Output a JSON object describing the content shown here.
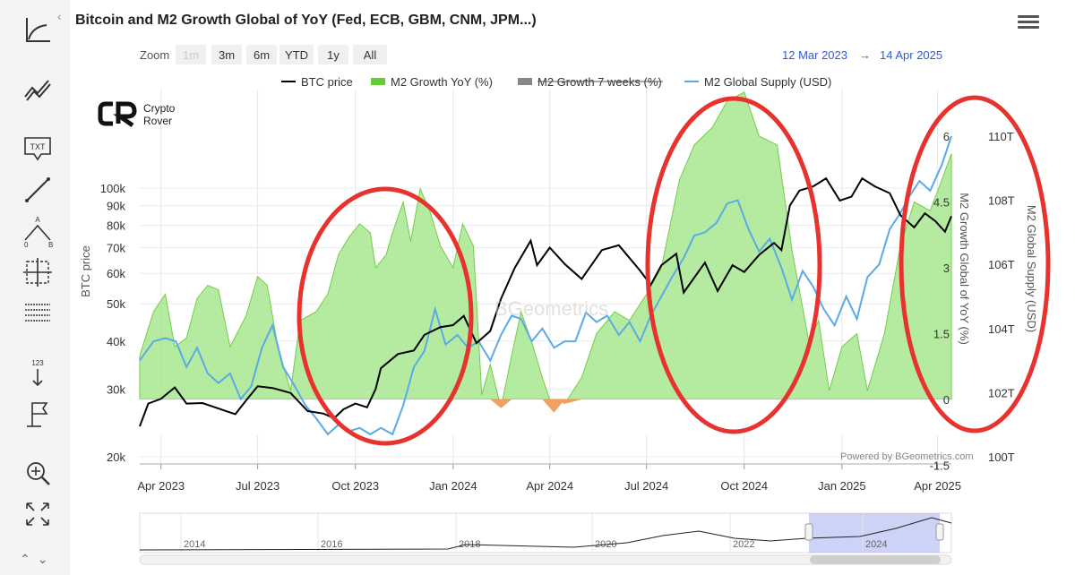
{
  "title": "Bitcoin and M2 Growth Global of YoY (Fed, ECB, GBM, CNM, JPM...)",
  "zoom": {
    "label": "Zoom",
    "buttons": [
      "1m",
      "3m",
      "6m",
      "YTD",
      "1y",
      "All"
    ],
    "disabled": [
      "1m"
    ]
  },
  "date_range": {
    "from": "12 Mar 2023",
    "arrow": "→",
    "to": "14 Apr 2025"
  },
  "watermark": {
    "brand_line1": "Crypto",
    "brand_line2": "Rover",
    "center": "BGeometrics",
    "credit": "Powered by BGeometrics.com"
  },
  "tools": [
    "trend-icon",
    "multi-line-icon",
    "text-annotation-icon",
    "line-draw-icon",
    "angle-icon",
    "crosshair-icon",
    "grid-lines-icon",
    "vertical-counter-icon",
    "flag-icon",
    "zoom-reset-icon",
    "fullscreen-icon"
  ],
  "tool_labels": {
    "text": "TXT",
    "counter": "123",
    "angle_a": "A",
    "angle_0": "0",
    "angle_b": "B"
  },
  "nav": {
    "up": "^",
    "down": "v"
  },
  "colors": {
    "btc": "#000000",
    "m2_yoy_fill": "#a8e890",
    "m2_yoy_neg": "#f0a060",
    "m2_7w": "#888888",
    "m2_supply": "#5aaae6",
    "circles": "#e8322e",
    "date_range": "#2e5be6"
  },
  "chart_data": {
    "type": "line",
    "x_range": [
      "2023-03-12",
      "2025-04-14"
    ],
    "x_ticks": [
      {
        "date": "2023-04-01",
        "label": "Apr 2023"
      },
      {
        "date": "2023-07-01",
        "label": "Jul 2023"
      },
      {
        "date": "2023-10-01",
        "label": "Oct 2023"
      },
      {
        "date": "2024-01-01",
        "label": "Jan 2024"
      },
      {
        "date": "2024-04-01",
        "label": "Apr 2024"
      },
      {
        "date": "2024-07-01",
        "label": "Jul 2024"
      },
      {
        "date": "2024-10-01",
        "label": "Oct 2024"
      },
      {
        "date": "2025-01-01",
        "label": "Jan 2025"
      },
      {
        "date": "2025-04-01",
        "label": "Apr 2025"
      }
    ],
    "axes": {
      "btc": {
        "label": "BTC price",
        "scale": "log",
        "range": [
          20000,
          100000
        ],
        "ticks": [
          {
            "v": 20000,
            "label": "20k"
          },
          {
            "v": 30000,
            "label": "30k"
          },
          {
            "v": 40000,
            "label": "40k"
          },
          {
            "v": 50000,
            "label": "50k"
          },
          {
            "v": 60000,
            "label": "60k"
          },
          {
            "v": 70000,
            "label": "70k"
          },
          {
            "v": 80000,
            "label": "80k"
          },
          {
            "v": 90000,
            "label": "90k"
          },
          {
            "v": 100000,
            "label": "100k"
          }
        ]
      },
      "m2_yoy": {
        "label": "M2 Growth Global of YoY (%)",
        "range": [
          -1.5,
          7.5
        ],
        "ticks": [
          {
            "v": -1.5,
            "label": "-1.5"
          },
          {
            "v": 0,
            "label": "0"
          },
          {
            "v": 1.5,
            "label": "1.5"
          },
          {
            "v": 3,
            "label": "3"
          },
          {
            "v": 4.5,
            "label": "4.5"
          },
          {
            "v": 6,
            "label": "6"
          }
        ]
      },
      "m2_supply": {
        "label": "M2 Global Supply (USD)",
        "range": [
          100,
          112
        ],
        "ticks": [
          {
            "v": 100,
            "label": "100T"
          },
          {
            "v": 102,
            "label": "102T"
          },
          {
            "v": 104,
            "label": "104T"
          },
          {
            "v": 106,
            "label": "106T"
          },
          {
            "v": 108,
            "label": "108T"
          },
          {
            "v": 110,
            "label": "110T"
          }
        ]
      }
    },
    "grid": true,
    "legend_position": "top",
    "legend": [
      {
        "name": "BTC price",
        "kind": "line",
        "hidden": false
      },
      {
        "name": "M2 Growth YoY (%)",
        "kind": "area",
        "hidden": false
      },
      {
        "name": "M2 Growth 7 weeks (%)",
        "kind": "area",
        "hidden": true
      },
      {
        "name": "M2 Global Supply (USD)",
        "kind": "line",
        "hidden": false
      }
    ],
    "series": [
      {
        "name": "BTC price",
        "axis": "btc",
        "points": [
          [
            "2023-03-12",
            24000
          ],
          [
            "2023-03-20",
            27500
          ],
          [
            "2023-04-01",
            28300
          ],
          [
            "2023-04-14",
            30300
          ],
          [
            "2023-04-25",
            27500
          ],
          [
            "2023-05-10",
            27600
          ],
          [
            "2023-05-25",
            26700
          ],
          [
            "2023-06-10",
            25800
          ],
          [
            "2023-06-20",
            28000
          ],
          [
            "2023-07-01",
            30500
          ],
          [
            "2023-07-15",
            30200
          ],
          [
            "2023-08-01",
            29300
          ],
          [
            "2023-08-17",
            26300
          ],
          [
            "2023-09-01",
            25900
          ],
          [
            "2023-09-11",
            25200
          ],
          [
            "2023-09-20",
            26600
          ],
          [
            "2023-10-01",
            27500
          ],
          [
            "2023-10-12",
            26900
          ],
          [
            "2023-10-20",
            30000
          ],
          [
            "2023-10-25",
            34000
          ],
          [
            "2023-11-10",
            37000
          ],
          [
            "2023-11-25",
            37800
          ],
          [
            "2023-12-05",
            41500
          ],
          [
            "2023-12-20",
            43500
          ],
          [
            "2024-01-01",
            44000
          ],
          [
            "2024-01-11",
            46500
          ],
          [
            "2024-01-23",
            39500
          ],
          [
            "2024-02-05",
            42500
          ],
          [
            "2024-02-15",
            51500
          ],
          [
            "2024-02-28",
            62000
          ],
          [
            "2024-03-14",
            73000
          ],
          [
            "2024-03-20",
            63000
          ],
          [
            "2024-04-01",
            70000
          ],
          [
            "2024-04-15",
            63500
          ],
          [
            "2024-05-01",
            58000
          ],
          [
            "2024-05-20",
            69000
          ],
          [
            "2024-06-05",
            71000
          ],
          [
            "2024-06-25",
            61000
          ],
          [
            "2024-07-05",
            56000
          ],
          [
            "2024-07-15",
            63000
          ],
          [
            "2024-07-29",
            67500
          ],
          [
            "2024-08-05",
            53500
          ],
          [
            "2024-08-25",
            64000
          ],
          [
            "2024-09-06",
            54000
          ],
          [
            "2024-09-20",
            63000
          ],
          [
            "2024-10-01",
            60500
          ],
          [
            "2024-10-15",
            67000
          ],
          [
            "2024-10-29",
            72000
          ],
          [
            "2024-11-05",
            69000
          ],
          [
            "2024-11-13",
            90000
          ],
          [
            "2024-11-22",
            98500
          ],
          [
            "2024-12-05",
            101000
          ],
          [
            "2024-12-17",
            106000
          ],
          [
            "2024-12-30",
            92800
          ],
          [
            "2025-01-10",
            95000
          ],
          [
            "2025-01-20",
            106000
          ],
          [
            "2025-02-01",
            101000
          ],
          [
            "2025-02-15",
            97000
          ],
          [
            "2025-02-25",
            85000
          ],
          [
            "2025-03-10",
            79000
          ],
          [
            "2025-03-20",
            86000
          ],
          [
            "2025-03-30",
            82000
          ],
          [
            "2025-04-08",
            77000
          ],
          [
            "2025-04-14",
            84500
          ]
        ]
      },
      {
        "name": "M2 Growth YoY (%)",
        "axis": "m2_yoy",
        "points": [
          [
            "2023-03-12",
            1.0
          ],
          [
            "2023-03-25",
            2.0
          ],
          [
            "2023-04-05",
            2.4
          ],
          [
            "2023-04-14",
            1.2
          ],
          [
            "2023-04-25",
            1.4
          ],
          [
            "2023-05-05",
            2.3
          ],
          [
            "2023-05-15",
            2.6
          ],
          [
            "2023-05-25",
            2.5
          ],
          [
            "2023-06-05",
            1.2
          ],
          [
            "2023-06-20",
            1.9
          ],
          [
            "2023-07-01",
            2.8
          ],
          [
            "2023-07-10",
            2.6
          ],
          [
            "2023-07-20",
            1.2
          ],
          [
            "2023-08-01",
            0.2
          ],
          [
            "2023-08-10",
            1.8
          ],
          [
            "2023-08-25",
            2.0
          ],
          [
            "2023-09-05",
            2.4
          ],
          [
            "2023-09-15",
            3.3
          ],
          [
            "2023-09-25",
            3.7
          ],
          [
            "2023-10-05",
            4.0
          ],
          [
            "2023-10-15",
            3.8
          ],
          [
            "2023-10-20",
            3.0
          ],
          [
            "2023-10-30",
            3.3
          ],
          [
            "2023-11-05",
            3.8
          ],
          [
            "2023-11-15",
            4.5
          ],
          [
            "2023-11-22",
            3.6
          ],
          [
            "2023-12-01",
            4.8
          ],
          [
            "2023-12-10",
            4.3
          ],
          [
            "2023-12-20",
            3.5
          ],
          [
            "2024-01-01",
            3.0
          ],
          [
            "2024-01-10",
            4.0
          ],
          [
            "2024-01-20",
            3.5
          ],
          [
            "2024-01-28",
            0.1
          ],
          [
            "2024-02-05",
            0.8
          ],
          [
            "2024-02-15",
            -0.2
          ],
          [
            "2024-02-25",
            1.0
          ],
          [
            "2024-03-05",
            2.0
          ],
          [
            "2024-03-15",
            1.3
          ],
          [
            "2024-03-25",
            0.5
          ],
          [
            "2024-04-05",
            -0.3
          ],
          [
            "2024-04-15",
            -0.1
          ],
          [
            "2024-05-01",
            0.5
          ],
          [
            "2024-05-15",
            1.5
          ],
          [
            "2024-06-01",
            2.0
          ],
          [
            "2024-06-15",
            1.8
          ],
          [
            "2024-07-01",
            2.4
          ],
          [
            "2024-07-15",
            3.0
          ],
          [
            "2024-08-01",
            5.0
          ],
          [
            "2024-08-15",
            5.8
          ],
          [
            "2024-09-01",
            6.2
          ],
          [
            "2024-09-15",
            6.8
          ],
          [
            "2024-10-01",
            7.0
          ],
          [
            "2024-10-15",
            6.0
          ],
          [
            "2024-11-01",
            5.8
          ],
          [
            "2024-11-15",
            3.4
          ],
          [
            "2024-12-01",
            1.3
          ],
          [
            "2024-12-10",
            1.8
          ],
          [
            "2024-12-20",
            0.2
          ],
          [
            "2025-01-01",
            1.2
          ],
          [
            "2025-01-15",
            1.5
          ],
          [
            "2025-01-25",
            0.2
          ],
          [
            "2025-02-10",
            1.5
          ],
          [
            "2025-02-25",
            3.5
          ],
          [
            "2025-03-10",
            4.5
          ],
          [
            "2025-03-25",
            4.3
          ],
          [
            "2025-04-05",
            5.0
          ],
          [
            "2025-04-14",
            5.6
          ]
        ]
      },
      {
        "name": "M2 Global Supply (USD)",
        "axis": "m2_supply",
        "points": [
          [
            "2023-03-12",
            103.0
          ],
          [
            "2023-03-25",
            103.6
          ],
          [
            "2023-04-05",
            103.7
          ],
          [
            "2023-04-15",
            103.6
          ],
          [
            "2023-04-25",
            102.8
          ],
          [
            "2023-05-05",
            103.4
          ],
          [
            "2023-05-15",
            102.6
          ],
          [
            "2023-05-25",
            102.3
          ],
          [
            "2023-06-05",
            102.6
          ],
          [
            "2023-06-15",
            101.8
          ],
          [
            "2023-06-25",
            102.2
          ],
          [
            "2023-07-05",
            103.4
          ],
          [
            "2023-07-15",
            104.1
          ],
          [
            "2023-07-25",
            102.8
          ],
          [
            "2023-08-05",
            102.2
          ],
          [
            "2023-08-15",
            101.6
          ],
          [
            "2023-08-25",
            101.2
          ],
          [
            "2023-09-05",
            100.7
          ],
          [
            "2023-09-15",
            101.0
          ],
          [
            "2023-09-25",
            100.8
          ],
          [
            "2023-10-05",
            100.9
          ],
          [
            "2023-10-15",
            100.7
          ],
          [
            "2023-10-25",
            100.9
          ],
          [
            "2023-11-05",
            100.7
          ],
          [
            "2023-11-15",
            101.6
          ],
          [
            "2023-11-25",
            102.8
          ],
          [
            "2023-12-05",
            103.3
          ],
          [
            "2023-12-15",
            104.6
          ],
          [
            "2023-12-25",
            103.5
          ],
          [
            "2024-01-05",
            103.8
          ],
          [
            "2024-01-15",
            103.4
          ],
          [
            "2024-01-25",
            103.6
          ],
          [
            "2024-02-05",
            103.0
          ],
          [
            "2024-02-15",
            103.8
          ],
          [
            "2024-02-25",
            104.4
          ],
          [
            "2024-03-05",
            104.3
          ],
          [
            "2024-03-15",
            103.6
          ],
          [
            "2024-03-25",
            104.0
          ],
          [
            "2024-04-05",
            103.4
          ],
          [
            "2024-04-15",
            103.6
          ],
          [
            "2024-04-25",
            103.6
          ],
          [
            "2024-05-05",
            104.5
          ],
          [
            "2024-05-15",
            104.2
          ],
          [
            "2024-05-25",
            104.4
          ],
          [
            "2024-06-05",
            103.8
          ],
          [
            "2024-06-15",
            104.2
          ],
          [
            "2024-06-25",
            103.6
          ],
          [
            "2024-07-05",
            104.4
          ],
          [
            "2024-07-15",
            105.0
          ],
          [
            "2024-07-25",
            105.6
          ],
          [
            "2024-08-05",
            106.2
          ],
          [
            "2024-08-15",
            106.9
          ],
          [
            "2024-08-25",
            107.0
          ],
          [
            "2024-09-05",
            107.3
          ],
          [
            "2024-09-15",
            107.9
          ],
          [
            "2024-09-25",
            108.0
          ],
          [
            "2024-10-05",
            107.1
          ],
          [
            "2024-10-15",
            106.4
          ],
          [
            "2024-10-25",
            106.8
          ],
          [
            "2024-11-05",
            105.9
          ],
          [
            "2024-11-15",
            104.9
          ],
          [
            "2024-11-25",
            105.8
          ],
          [
            "2024-12-05",
            105.3
          ],
          [
            "2024-12-15",
            104.6
          ],
          [
            "2024-12-25",
            104.1
          ],
          [
            "2025-01-05",
            105.0
          ],
          [
            "2025-01-15",
            104.3
          ],
          [
            "2025-01-25",
            105.6
          ],
          [
            "2025-02-05",
            106.0
          ],
          [
            "2025-02-15",
            107.1
          ],
          [
            "2025-02-25",
            107.6
          ],
          [
            "2025-03-05",
            108.1
          ],
          [
            "2025-03-15",
            108.6
          ],
          [
            "2025-03-25",
            108.3
          ],
          [
            "2025-04-05",
            109.1
          ],
          [
            "2025-04-14",
            110.0
          ]
        ]
      }
    ],
    "navigator": {
      "x_labels": [
        "2014",
        "2016",
        "2018",
        "2020",
        "2022",
        "2024"
      ],
      "selected_range": [
        "2023-03-12",
        "2025-04-14"
      ]
    },
    "annotations": [
      {
        "kind": "ellipse",
        "color": "#e8322e",
        "around": [
          "2023-09-15",
          "2024-01-25"
        ]
      },
      {
        "kind": "ellipse",
        "color": "#e8322e",
        "around": [
          "2024-07-05",
          "2024-12-10"
        ]
      },
      {
        "kind": "ellipse",
        "color": "#e8322e",
        "around": [
          "2025-03-01",
          "2025-04-14"
        ]
      }
    ]
  }
}
